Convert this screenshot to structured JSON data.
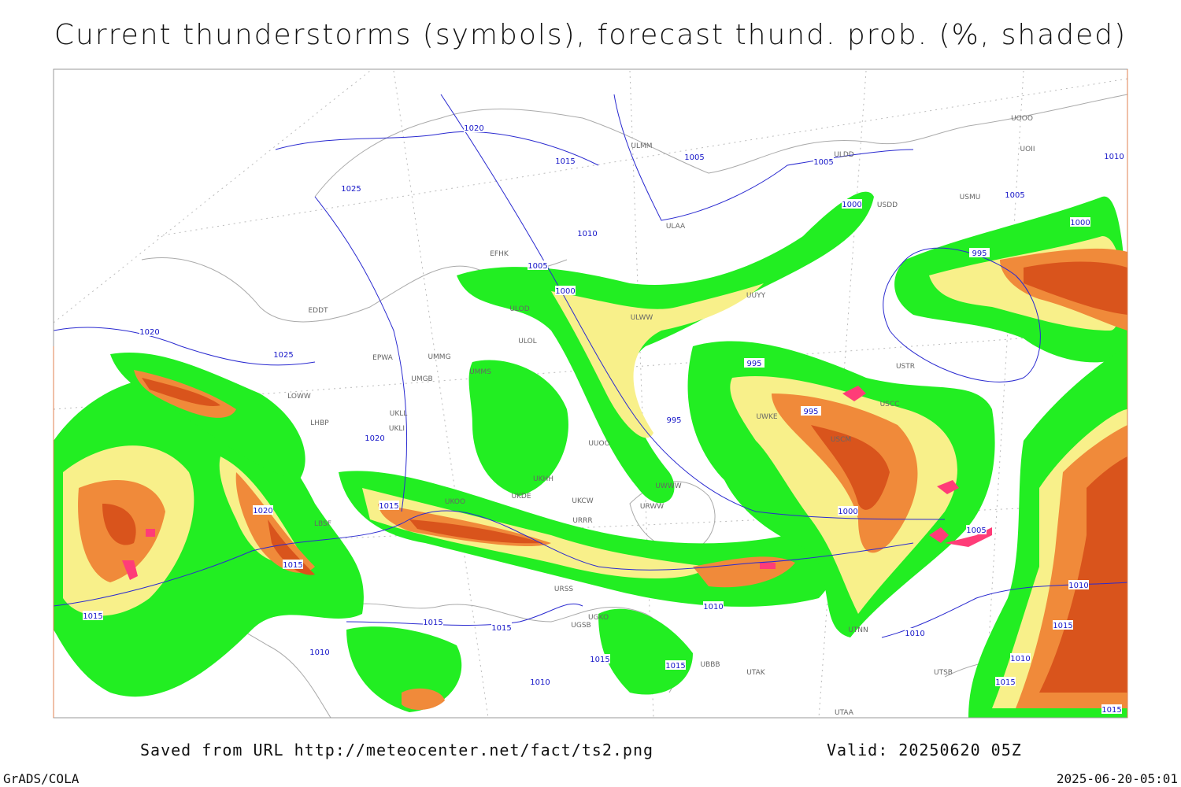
{
  "header": {
    "title": "Current thunderstorms (symbols), forecast thund. prob. (%, shaded)"
  },
  "isobar_labels": [
    "1020",
    "1015",
    "1005",
    "1005",
    "1010",
    "1025",
    "1005",
    "1000",
    "1010",
    "1000",
    "995",
    "1005",
    "1000",
    "1020",
    "1025",
    "995",
    "995",
    "995",
    "1020",
    "1015",
    "1020",
    "1000",
    "1005",
    "1015",
    "1010",
    "1015",
    "1015",
    "1015",
    "1010",
    "1010",
    "1015",
    "1010",
    "1015",
    "1015",
    "1010",
    "1010",
    "1015",
    "1015"
  ],
  "stations": [
    "EFHK",
    "ULOD",
    "ULOL",
    "UMMG",
    "EPWA",
    "UMGB",
    "LOWW",
    "LHBP",
    "UKLL",
    "UKLI",
    "UKOO",
    "UKDE",
    "UKCW",
    "URRR",
    "URSS",
    "UGSB",
    "UGKO",
    "UBBB",
    "UTAK",
    "UTAA",
    "UTSB",
    "ULAA",
    "ULMM",
    "UUOO",
    "URWW",
    "UWWW",
    "USCC",
    "USCM",
    "USTR",
    "USMU",
    "UOOO",
    "UOII",
    "ULDD",
    "USDD",
    "UUYY",
    "ULWW",
    "UTNN",
    "UWKE",
    "LBSF",
    "EDDT",
    "UMMS",
    "UKHH"
  ],
  "footer": {
    "source": "Saved from URL http://meteocenter.net/fact/ts2.png",
    "valid": "Valid: 20250620 05Z",
    "software": "GrADS/COLA",
    "timestamp": "2025-06-20-05:01"
  }
}
